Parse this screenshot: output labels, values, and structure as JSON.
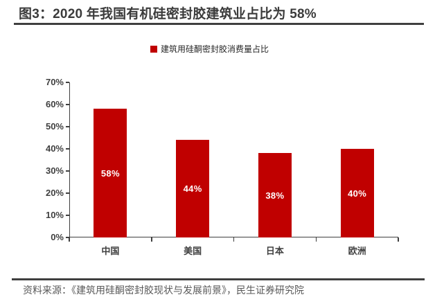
{
  "title": "图3：2020 年我国有机硅密封胶建筑业占比为 58%",
  "legend": {
    "label": "建筑用硅酮密封胶消费量占比",
    "swatch_color": "#c00000"
  },
  "source": "资料来源：《建筑用硅酮密封胶现状与发展前景》，民生证券研究院",
  "colors": {
    "bar": "#c00000",
    "title_text": "#3b3b3b",
    "axis_text": "#404040",
    "axis_line": "#3f3f3f",
    "data_label": "#ffffff",
    "source_text": "#595959",
    "background": "#ffffff"
  },
  "chart_data": {
    "type": "bar",
    "categories": [
      "中国",
      "美国",
      "日本",
      "欧洲"
    ],
    "values": [
      58,
      44,
      38,
      40
    ],
    "data_labels": [
      "58%",
      "44%",
      "38%",
      "40%"
    ],
    "series_name": "建筑用硅酮密封胶消费量占比",
    "title": "2020 年我国有机硅密封胶建筑业占比为 58%",
    "xlabel": "",
    "ylabel": "",
    "ylim": [
      0,
      70
    ],
    "ytick_step": 10,
    "ytick_labels": [
      "0%",
      "10%",
      "20%",
      "30%",
      "40%",
      "50%",
      "60%",
      "70%"
    ],
    "grid": false,
    "legend_position": "top-center",
    "data_labels_position": "center-inside"
  }
}
